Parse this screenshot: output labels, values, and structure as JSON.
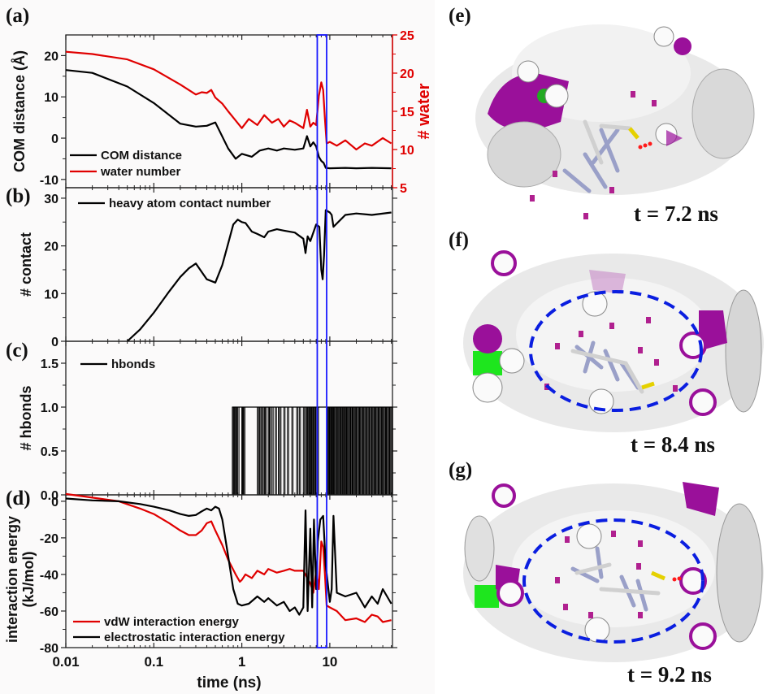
{
  "panel_labels": {
    "a": "(a)",
    "b": "(b)",
    "c": "(c)",
    "d": "(d)",
    "e": "(e)",
    "f": "(f)",
    "g": "(g)"
  },
  "colors": {
    "black": "#000000",
    "red": "#e00000",
    "blue": "#1a1aff",
    "dashed_ellipse": "#0a1ee0",
    "purple": "#9a109a",
    "green": "#22dd22",
    "surface": "#e8e8e8"
  },
  "snapshots": [
    {
      "id": "e",
      "time_label": "t = 7.2 ns",
      "ellipse": false
    },
    {
      "id": "f",
      "time_label": "t = 8.4 ns",
      "ellipse": true
    },
    {
      "id": "g",
      "time_label": "t = 9.2 ns",
      "ellipse": true
    }
  ],
  "chart_data": [
    {
      "type": "line",
      "panel": "(a)",
      "xscale": "log",
      "xlim": [
        0.01,
        50
      ],
      "ylabel": "COM distance (Å)",
      "ylim": [
        -12,
        25
      ],
      "yticks": [
        -10,
        0,
        10,
        20
      ],
      "ytick_labels": [
        "-10",
        "0",
        "10",
        "20"
      ],
      "y2label": "# water",
      "y2lim": [
        5,
        25
      ],
      "y2ticks": [
        5,
        10,
        15,
        20,
        25
      ],
      "y2tick_labels": [
        "5",
        "10",
        "15",
        "20",
        "25"
      ],
      "legend": [
        "COM distance",
        "water number"
      ],
      "legend_position": "bottom-left",
      "highlight_window_ns": [
        7.2,
        9.2
      ],
      "series": [
        {
          "name": "COM distance",
          "axis": "left",
          "color": "#000000",
          "x": [
            0.01,
            0.02,
            0.05,
            0.1,
            0.2,
            0.3,
            0.4,
            0.5,
            0.7,
            0.85,
            1.0,
            1.3,
            1.6,
            2.0,
            2.5,
            3.0,
            4.0,
            5.0,
            5.5,
            6.0,
            6.5,
            7.0,
            7.5,
            8.0,
            8.5,
            9.0,
            10,
            15,
            20,
            30,
            50
          ],
          "y": [
            16.5,
            15.8,
            12.5,
            8.5,
            3.5,
            2.8,
            3.0,
            3.8,
            -2.5,
            -5.0,
            -3.8,
            -4.5,
            -3.0,
            -2.5,
            -3.0,
            -2.5,
            -2.8,
            -2.5,
            0.5,
            -2.0,
            -1.0,
            -2.0,
            -4.5,
            -5.5,
            -6.0,
            -7.2,
            -7.3,
            -7.2,
            -7.3,
            -7.2,
            -7.3
          ]
        },
        {
          "name": "water number",
          "axis": "right",
          "color": "#e00000",
          "x": [
            0.01,
            0.02,
            0.05,
            0.1,
            0.2,
            0.3,
            0.35,
            0.4,
            0.45,
            0.5,
            0.6,
            0.7,
            0.85,
            1.0,
            1.2,
            1.5,
            1.8,
            2.2,
            2.6,
            3.0,
            3.5,
            4.0,
            5.0,
            5.5,
            6.0,
            6.5,
            7.0,
            7.5,
            8.0,
            8.4,
            8.8,
            9.2,
            10,
            12,
            15,
            20,
            25,
            30,
            40,
            50
          ],
          "y": [
            22.8,
            22.5,
            21.8,
            20.5,
            18.5,
            17.2,
            17.5,
            17.4,
            17.8,
            16.8,
            16.0,
            15.0,
            13.8,
            12.8,
            14.0,
            13.2,
            14.5,
            13.5,
            14.0,
            13.0,
            13.8,
            13.5,
            12.8,
            15.2,
            13.0,
            13.5,
            13.2,
            17.0,
            18.8,
            17.8,
            14.0,
            10.8,
            11.0,
            10.5,
            11.2,
            10.0,
            10.8,
            10.5,
            11.5,
            10.8
          ]
        }
      ]
    },
    {
      "type": "line",
      "panel": "(b)",
      "xscale": "log",
      "xlim": [
        0.01,
        50
      ],
      "ylabel": "# contact",
      "ylim": [
        0,
        32
      ],
      "yticks": [
        0,
        10,
        20,
        30
      ],
      "ytick_labels": [
        "0",
        "10",
        "20",
        "30"
      ],
      "legend": [
        "heavy atom contact number"
      ],
      "legend_position": "top-left",
      "series": [
        {
          "name": "heavy atom contact number",
          "color": "#000000",
          "x": [
            0.05,
            0.07,
            0.1,
            0.15,
            0.2,
            0.25,
            0.3,
            0.4,
            0.5,
            0.6,
            0.7,
            0.8,
            0.9,
            1.0,
            1.1,
            1.3,
            1.5,
            1.8,
            2.0,
            2.5,
            3.0,
            4.0,
            5.0,
            5.3,
            5.6,
            6.0,
            7.0,
            7.6,
            8.0,
            8.3,
            8.6,
            9.0,
            10.0,
            10.5,
            11,
            15,
            20,
            30,
            50
          ],
          "y": [
            0,
            2.5,
            6.0,
            10.5,
            13.5,
            15.3,
            16.3,
            13.0,
            12.3,
            16.0,
            20.5,
            24.5,
            25.5,
            25.0,
            24.8,
            23.0,
            22.5,
            21.8,
            23.0,
            23.5,
            23.2,
            22.8,
            21.5,
            18.5,
            22.0,
            21.0,
            24.5,
            24.0,
            15.0,
            13.0,
            18.0,
            27.5,
            27.0,
            26.5,
            24.0,
            26.5,
            26.8,
            26.5,
            27.0
          ]
        }
      ]
    },
    {
      "type": "line",
      "panel": "(c)",
      "xscale": "log",
      "xlim": [
        0.01,
        50
      ],
      "ylabel": "# hbonds",
      "ylim": [
        0,
        1.75
      ],
      "yticks": [
        0.0,
        0.5,
        1.0,
        1.5
      ],
      "ytick_labels": [
        "0.0",
        "0.5",
        "1.0",
        "1.5"
      ],
      "legend": [
        "hbonds"
      ],
      "legend_position": "top-left",
      "series": [
        {
          "name": "hbonds",
          "color": "#000000",
          "kind": "binary-pulses",
          "on_times": [
            0.78,
            0.8,
            0.83,
            0.85,
            0.9,
            1.0,
            1.02,
            1.05,
            1.5,
            1.55,
            1.6,
            1.7,
            1.75,
            1.85,
            2.0,
            2.05,
            2.2,
            2.4,
            2.6,
            2.7,
            3.0,
            3.3,
            3.7,
            4.2,
            4.5,
            5.0,
            5.3,
            5.6,
            5.9,
            6.2,
            6.5,
            6.9,
            7.2,
            9.5,
            10,
            10.5,
            11,
            12,
            13,
            14,
            15,
            16,
            17,
            18,
            20,
            22,
            24,
            26,
            28,
            30,
            33,
            36,
            40,
            44,
            48
          ],
          "values": [
            0,
            1
          ]
        }
      ]
    },
    {
      "type": "line",
      "panel": "(d)",
      "xscale": "log",
      "xlim": [
        0.01,
        50
      ],
      "xlabel": "time (ns)",
      "xticks": [
        0.01,
        0.1,
        1,
        10
      ],
      "xtick_labels": [
        "0.01",
        "0.1",
        "1",
        "10"
      ],
      "ylabel": "interaction energy (kJ/mol)",
      "ylabel_line1": "interaction energy",
      "ylabel_line2": "(kJ/mol)",
      "ylim": [
        -80,
        5
      ],
      "yticks": [
        -80,
        -60,
        -40,
        -20,
        0
      ],
      "ytick_labels": [
        "-80",
        "-60",
        "-40",
        "-20",
        "0"
      ],
      "legend": [
        "vdW interaction energy",
        "electrostatic interaction energy"
      ],
      "legend_position": "bottom-left",
      "series": [
        {
          "name": "vdW interaction energy",
          "color": "#e00000",
          "x": [
            0.01,
            0.02,
            0.04,
            0.07,
            0.1,
            0.15,
            0.2,
            0.25,
            0.3,
            0.35,
            0.4,
            0.45,
            0.5,
            0.6,
            0.7,
            0.85,
            0.95,
            1.0,
            1.1,
            1.3,
            1.5,
            1.8,
            2.0,
            2.5,
            3.0,
            3.5,
            4.0,
            5.0,
            6.0,
            6.5,
            7.0,
            7.5,
            8.0,
            8.4,
            8.8,
            9.2,
            10,
            12,
            15,
            20,
            25,
            30,
            35,
            40,
            50
          ],
          "y": [
            4,
            2,
            0,
            -4,
            -7,
            -12,
            -16,
            -18.5,
            -18.5,
            -16,
            -12,
            -11,
            -16,
            -24,
            -32,
            -40,
            -44,
            -43,
            -40,
            -42,
            -38,
            -40,
            -37,
            -39,
            -38,
            -37,
            -38,
            -38,
            -45,
            -50,
            -38,
            -48,
            -22,
            -25,
            -40,
            -57,
            -58,
            -60,
            -65,
            -64,
            -66,
            -62,
            -63,
            -66,
            -65
          ]
        },
        {
          "name": "electrostatic interaction energy",
          "color": "#000000",
          "x": [
            0.01,
            0.02,
            0.04,
            0.07,
            0.1,
            0.15,
            0.2,
            0.25,
            0.3,
            0.35,
            0.4,
            0.45,
            0.5,
            0.55,
            0.6,
            0.7,
            0.8,
            0.9,
            1.0,
            1.2,
            1.5,
            1.8,
            2.0,
            2.5,
            3.0,
            3.5,
            4.0,
            4.5,
            5.0,
            5.3,
            5.6,
            6.0,
            6.3,
            6.6,
            7.0,
            7.3,
            7.8,
            8.4,
            9.0,
            10,
            10.5,
            11,
            12,
            15,
            20,
            25,
            30,
            35,
            40,
            50
          ],
          "y": [
            1.5,
            0.5,
            0,
            -1.5,
            -3,
            -5,
            -7,
            -8,
            -7.5,
            -5.5,
            -4,
            -5,
            -3,
            -4,
            -10,
            -30,
            -48,
            -56,
            -57,
            -56,
            -52,
            -55,
            -53,
            -57,
            -55,
            -60,
            -58,
            -62,
            -58,
            -5,
            -60,
            -15,
            -58,
            -10,
            -48,
            -22,
            -10,
            -8,
            -35,
            -55,
            -48,
            -8,
            -50,
            -52,
            -50,
            -58,
            -52,
            -56,
            -48,
            -56
          ]
        }
      ]
    }
  ]
}
